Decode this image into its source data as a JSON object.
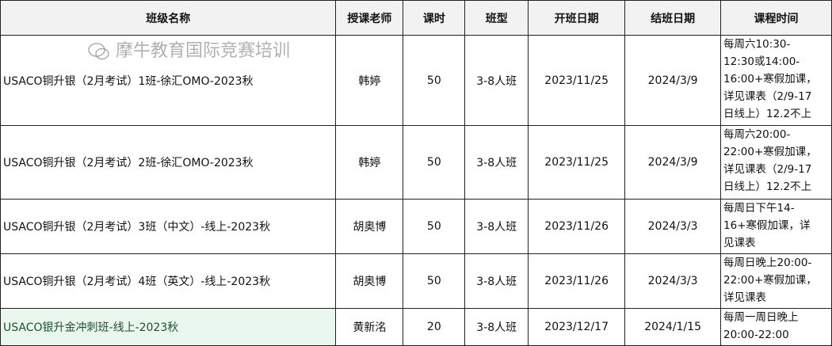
{
  "headers": [
    "班级名称",
    "授课老师",
    "课时",
    "班型",
    "开班日期",
    "结班日期",
    "课程时间"
  ],
  "rows": [
    {
      "name": "USACO铜升银（2月考试）1班-徐汇OMO-2023秋",
      "teacher": "韩婷",
      "hours": "50",
      "type": "3-8人班",
      "start": "2023/11/25",
      "end": "2024/3/9",
      "time": "每周六10:30-\n12:30或14:00-\n16:00+寒假加课，\n详见课表（2/9-17\n日线上）12.2不上"
    },
    {
      "name": "USACO铜升银（2月考试）2班-徐汇OMO-2023秋",
      "teacher": "韩婷",
      "hours": "50",
      "type": "3-8人班",
      "start": "2023/11/25",
      "end": "2024/3/9",
      "time": "每周六20:00-\n22:00+寒假加课，\n详见课表（2/9-17\n日线上）12.2不上"
    },
    {
      "name": "USACO铜升银（2月考试）3班（中文）-线上-2023秋",
      "teacher": "胡奥博",
      "hours": "50",
      "type": "3-8人班",
      "start": "2023/11/26",
      "end": "2024/3/3",
      "time": "每周日下午14-\n16+寒假加课，详\n见课表"
    },
    {
      "name": "USACO铜升银（2月考试）4班（英文）-线上-2023秋",
      "teacher": "胡奥博",
      "hours": "50",
      "type": "3-8人班",
      "start": "2023/11/26",
      "end": "2024/3/3",
      "time": "每周日晚上20:00-\n22:00+寒假加课，\n详见课表"
    },
    {
      "name": "USACO银升金冲刺班-线上-2023秋",
      "teacher": "黄新洺",
      "hours": "20",
      "type": "3-8人班",
      "start": "2023/12/17",
      "end": "2024/1/15",
      "time": "每周一周日晚上\n20:00-22:00"
    }
  ],
  "watermark": "摩牛教育国际竞赛培训",
  "colors": {
    "header_bg": "#f2f2f2",
    "highlight_bg": "#eaf7ee"
  }
}
